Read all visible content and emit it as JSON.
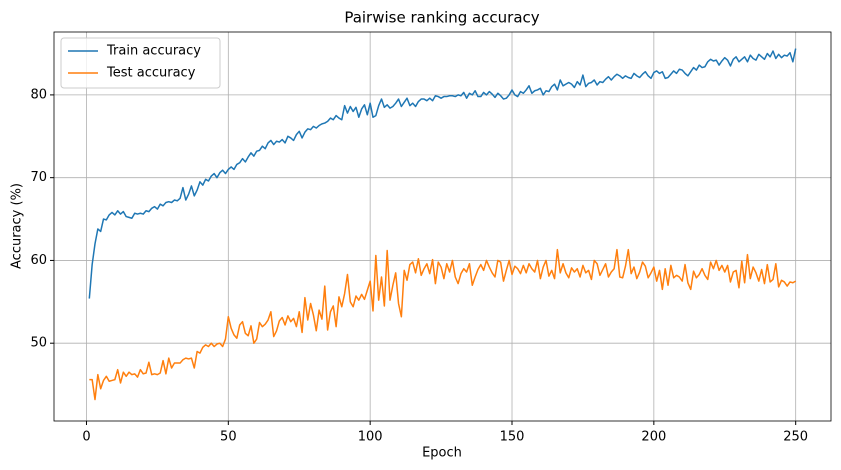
{
  "chart_data": {
    "type": "line",
    "title": "Pairwise ranking accuracy",
    "x_label": "Epoch",
    "y_label": "Accuracy (%)",
    "x": [
      1,
      2,
      3,
      4,
      5,
      6,
      7,
      8,
      9,
      10,
      11,
      12,
      13,
      14,
      15,
      16,
      17,
      18,
      19,
      20,
      21,
      22,
      23,
      24,
      25,
      26,
      27,
      28,
      29,
      30,
      31,
      32,
      33,
      34,
      35,
      36,
      37,
      38,
      39,
      40,
      41,
      42,
      43,
      44,
      45,
      46,
      47,
      48,
      49,
      50,
      51,
      52,
      53,
      54,
      55,
      56,
      57,
      58,
      59,
      60,
      61,
      62,
      63,
      64,
      65,
      66,
      67,
      68,
      69,
      70,
      71,
      72,
      73,
      74,
      75,
      76,
      77,
      78,
      79,
      80,
      81,
      82,
      83,
      84,
      85,
      86,
      87,
      88,
      89,
      90,
      91,
      92,
      93,
      94,
      95,
      96,
      97,
      98,
      99,
      100,
      101,
      102,
      103,
      104,
      105,
      106,
      107,
      108,
      109,
      110,
      111,
      112,
      113,
      114,
      115,
      116,
      117,
      118,
      119,
      120,
      121,
      122,
      123,
      124,
      125,
      126,
      127,
      128,
      129,
      130,
      131,
      132,
      133,
      134,
      135,
      136,
      137,
      138,
      139,
      140,
      141,
      142,
      143,
      144,
      145,
      146,
      147,
      148,
      149,
      150,
      151,
      152,
      153,
      154,
      155,
      156,
      157,
      158,
      159,
      160,
      161,
      162,
      163,
      164,
      165,
      166,
      167,
      168,
      169,
      170,
      171,
      172,
      173,
      174,
      175,
      176,
      177,
      178,
      179,
      180,
      181,
      182,
      183,
      184,
      185,
      186,
      187,
      188,
      189,
      190,
      191,
      192,
      193,
      194,
      195,
      196,
      197,
      198,
      199,
      200,
      201,
      202,
      203,
      204,
      205,
      206,
      207,
      208,
      209,
      210,
      211,
      212,
      213,
      214,
      215,
      216,
      217,
      218,
      219,
      220,
      221,
      222,
      223,
      224,
      225,
      226,
      227,
      228,
      229,
      230,
      231,
      232,
      233,
      234,
      235,
      236,
      237,
      238,
      239,
      240,
      241,
      242,
      243,
      244,
      245,
      246,
      247,
      248,
      249,
      250
    ],
    "series": [
      {
        "name": "Train accuracy",
        "color": "#1f77b4",
        "values": [
          55.4,
          59.5,
          62.0,
          63.8,
          63.5,
          65.0,
          64.9,
          65.5,
          65.8,
          65.5,
          66.0,
          65.6,
          65.9,
          65.3,
          65.2,
          65.1,
          65.7,
          65.6,
          65.7,
          65.6,
          66.0,
          65.9,
          66.3,
          66.5,
          66.2,
          66.8,
          66.6,
          67.0,
          67.1,
          67.0,
          67.3,
          67.2,
          67.5,
          68.8,
          67.3,
          68.0,
          69.0,
          67.8,
          68.5,
          69.5,
          69.1,
          69.8,
          69.6,
          70.2,
          70.5,
          70.0,
          70.6,
          70.9,
          70.5,
          71.0,
          71.3,
          71.0,
          71.6,
          71.8,
          72.3,
          71.9,
          72.5,
          73.0,
          72.6,
          73.2,
          73.3,
          73.8,
          73.5,
          74.2,
          74.5,
          74.0,
          74.4,
          74.3,
          74.6,
          74.2,
          75.0,
          74.8,
          74.5,
          75.2,
          75.6,
          74.8,
          75.5,
          75.9,
          75.8,
          76.2,
          76.0,
          76.3,
          76.5,
          76.6,
          76.8,
          77.2,
          77.0,
          77.5,
          77.2,
          77.0,
          78.7,
          77.8,
          78.6,
          78.0,
          78.5,
          77.3,
          78.3,
          78.8,
          77.6,
          79.0,
          77.3,
          77.5,
          78.7,
          79.5,
          78.5,
          78.8,
          78.4,
          78.6,
          79.0,
          79.5,
          78.6,
          79.1,
          79.6,
          78.7,
          79.0,
          78.6,
          79.2,
          79.5,
          79.5,
          79.3,
          79.6,
          79.3,
          79.9,
          79.8,
          79.6,
          79.8,
          79.8,
          79.9,
          79.9,
          79.8,
          80.0,
          79.9,
          80.3,
          79.6,
          80.2,
          80.0,
          80.5,
          79.8,
          79.8,
          80.3,
          80.0,
          80.4,
          80.1,
          79.7,
          80.2,
          79.9,
          79.5,
          79.6,
          80.0,
          80.6,
          80.0,
          79.8,
          80.4,
          80.2,
          80.6,
          81.1,
          80.2,
          80.5,
          80.6,
          80.8,
          80.0,
          80.5,
          80.4,
          81.0,
          81.3,
          80.6,
          81.8,
          81.1,
          81.3,
          81.5,
          81.3,
          80.9,
          81.6,
          81.2,
          82.4,
          81.0,
          81.4,
          81.5,
          81.8,
          81.2,
          81.6,
          81.5,
          81.9,
          82.2,
          81.8,
          82.2,
          82.5,
          82.3,
          82.0,
          82.3,
          82.1,
          82.0,
          82.6,
          82.3,
          82.1,
          82.5,
          82.8,
          82.3,
          82.0,
          82.7,
          82.9,
          82.6,
          82.8,
          82.0,
          82.1,
          82.5,
          82.9,
          82.6,
          83.1,
          83.0,
          82.6,
          82.3,
          82.8,
          83.3,
          83.0,
          83.6,
          83.3,
          83.4,
          84.0,
          84.3,
          84.1,
          84.2,
          83.6,
          84.1,
          84.5,
          84.2,
          83.5,
          84.3,
          84.6,
          84.0,
          84.3,
          84.6,
          84.0,
          84.8,
          84.4,
          84.2,
          84.9,
          84.6,
          84.3,
          85.0,
          84.6,
          85.3,
          84.4,
          84.9,
          84.5,
          84.8,
          84.7,
          85.1,
          84.0,
          85.6
        ]
      },
      {
        "name": "Test accuracy",
        "color": "#ff7f0e",
        "values": [
          45.6,
          45.6,
          43.2,
          46.2,
          44.5,
          45.5,
          46.0,
          45.4,
          45.5,
          45.6,
          46.8,
          45.2,
          46.5,
          46.0,
          46.5,
          46.2,
          46.3,
          45.9,
          46.8,
          46.3,
          46.4,
          47.7,
          46.2,
          46.3,
          46.2,
          46.4,
          47.9,
          46.3,
          48.2,
          47.0,
          47.6,
          47.6,
          47.6,
          48.0,
          48.2,
          48.1,
          48.2,
          47.0,
          49.0,
          48.8,
          49.5,
          49.8,
          49.6,
          50.0,
          49.6,
          49.9,
          50.0,
          49.6,
          50.5,
          53.2,
          51.8,
          51.0,
          50.6,
          52.2,
          52.6,
          51.2,
          50.9,
          52.1,
          50.0,
          50.5,
          52.5,
          52.0,
          52.3,
          52.8,
          53.8,
          50.8,
          51.5,
          52.7,
          53.1,
          52.2,
          53.3,
          52.6,
          53.0,
          52.0,
          53.8,
          51.3,
          55.5,
          52.8,
          54.8,
          53.4,
          51.5,
          54.0,
          52.9,
          56.9,
          51.6,
          53.8,
          54.5,
          52.0,
          55.6,
          54.4,
          56.0,
          58.3,
          55.0,
          54.4,
          55.7,
          55.2,
          55.9,
          55.3,
          56.4,
          57.5,
          53.9,
          60.6,
          55.2,
          58.0,
          54.5,
          61.2,
          55.2,
          57.0,
          58.5,
          54.8,
          53.2,
          58.8,
          57.6,
          59.5,
          59.8,
          58.5,
          60.2,
          58.2,
          59.0,
          59.6,
          58.4,
          60.1,
          57.2,
          59.8,
          59.2,
          57.8,
          59.6,
          58.6,
          60.0,
          58.0,
          57.2,
          58.4,
          59.0,
          58.6,
          59.6,
          57.0,
          58.0,
          58.9,
          59.5,
          58.8,
          60.0,
          59.2,
          58.5,
          58.0,
          60.0,
          59.8,
          57.5,
          58.8,
          60.0,
          58.3,
          59.3,
          59.0,
          58.4,
          59.4,
          58.5,
          59.6,
          59.0,
          58.6,
          60.0,
          57.8,
          59.2,
          60.0,
          58.1,
          58.8,
          57.8,
          61.3,
          58.5,
          59.6,
          58.5,
          57.9,
          59.1,
          58.6,
          59.0,
          58.0,
          59.4,
          58.5,
          58.8,
          57.7,
          60.0,
          59.6,
          58.2,
          58.9,
          59.6,
          58.0,
          58.6,
          59.0,
          61.3,
          58.0,
          57.9,
          59.3,
          61.3,
          58.4,
          59.2,
          57.8,
          58.6,
          59.8,
          59.3,
          57.9,
          58.5,
          59.2,
          57.5,
          58.8,
          56.5,
          59.0,
          57.0,
          59.4,
          57.9,
          58.2,
          58.0,
          57.5,
          59.5,
          57.3,
          56.5,
          58.7,
          57.9,
          58.3,
          59.0,
          58.2,
          57.7,
          59.8,
          59.0,
          60.0,
          58.8,
          59.4,
          58.6,
          59.4,
          57.4,
          58.6,
          58.8,
          56.7,
          59.9,
          57.3,
          60.7,
          57.8,
          59.2,
          58.5,
          57.5,
          58.9,
          57.2,
          59.5,
          57.4,
          57.7,
          59.6,
          56.8,
          57.6,
          57.4,
          56.9,
          57.4,
          57.3,
          57.5
        ]
      }
    ],
    "xlim": [
      -11.45,
      262.45
    ],
    "xticks": [
      0,
      50,
      100,
      150,
      200,
      250
    ],
    "ylim": [
      40.6,
      87.6
    ],
    "yticks": [
      50,
      60,
      70,
      80
    ],
    "grid": true,
    "legend": "upper left"
  }
}
